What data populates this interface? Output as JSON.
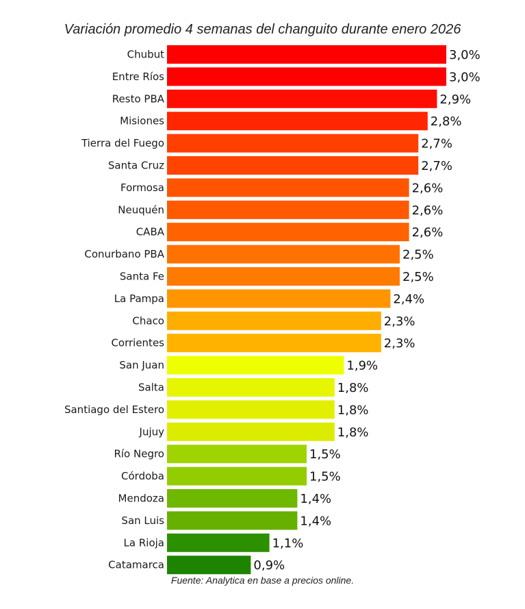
{
  "chart_data": {
    "type": "bar",
    "orientation": "horizontal",
    "title": "Variación promedio 4 semanas del changuito durante enero 2026",
    "xlabel": "",
    "ylabel": "",
    "xlim": [
      0,
      3.0
    ],
    "grid": false,
    "legend": "none",
    "categories": [
      "Chubut",
      "Entre Ríos",
      "Resto PBA",
      "Misiones",
      "Tierra del Fuego",
      "Santa Cruz",
      "Formosa",
      "Neuquén",
      "CABA",
      "Conurbano PBA",
      "Santa Fe",
      "La Pampa",
      "Chaco",
      "Corrientes",
      "San Juan",
      "Salta",
      "Santiago del Estero",
      "Jujuy",
      "Río Negro",
      "Córdoba",
      "Mendoza",
      "San Luis",
      "La Rioja",
      "Catamarca"
    ],
    "values": [
      3.0,
      3.0,
      2.9,
      2.8,
      2.7,
      2.7,
      2.6,
      2.6,
      2.6,
      2.5,
      2.5,
      2.4,
      2.3,
      2.3,
      1.9,
      1.8,
      1.8,
      1.8,
      1.5,
      1.5,
      1.4,
      1.4,
      1.1,
      0.9
    ],
    "value_labels": [
      "3,0%",
      "3,0%",
      "2,9%",
      "2,8%",
      "2,7%",
      "2,7%",
      "2,6%",
      "2,6%",
      "2,6%",
      "2,5%",
      "2,5%",
      "2,4%",
      "2,3%",
      "2,3%",
      "1,9%",
      "1,8%",
      "1,8%",
      "1,8%",
      "1,5%",
      "1,5%",
      "1,4%",
      "1,4%",
      "1,1%",
      "0,9%"
    ],
    "colors": [
      "#ff0000",
      "#ff0000",
      "#ff0d00",
      "#ff2600",
      "#ff4000",
      "#ff4400",
      "#ff5500",
      "#ff5a00",
      "#ff6200",
      "#ff7200",
      "#ff7a00",
      "#ff9600",
      "#ffad00",
      "#ffb300",
      "#eeff00",
      "#e6f500",
      "#e2f000",
      "#dcec00",
      "#9fd400",
      "#93cc00",
      "#6fb800",
      "#66b000",
      "#2d9000",
      "#1e8400"
    ]
  },
  "source_note": "Fuente: Analytica en base a precios online."
}
